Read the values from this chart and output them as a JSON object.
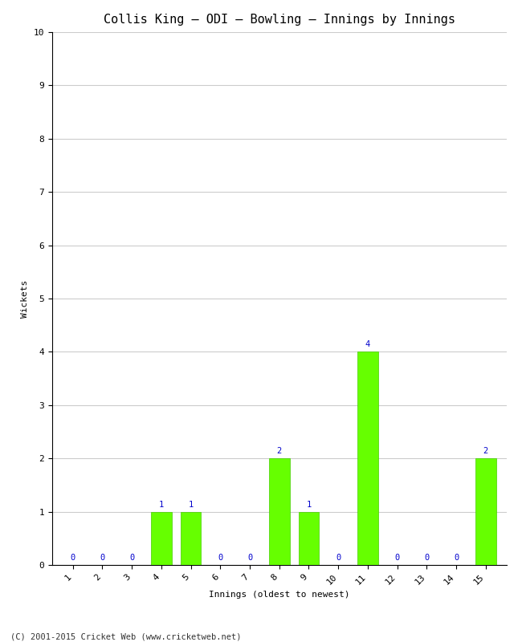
{
  "title": "Collis King – ODI – Bowling – Innings by Innings",
  "xlabel": "Innings (oldest to newest)",
  "ylabel": "Wickets",
  "categories": [
    1,
    2,
    3,
    4,
    5,
    6,
    7,
    8,
    9,
    10,
    11,
    12,
    13,
    14,
    15
  ],
  "values": [
    0,
    0,
    0,
    1,
    1,
    0,
    0,
    2,
    1,
    0,
    4,
    0,
    0,
    0,
    2
  ],
  "bar_color": "#66ff00",
  "bar_edge_color": "#44cc00",
  "label_color": "#0000cc",
  "title_color": "#000000",
  "background_color": "#ffffff",
  "ylim": [
    0,
    10
  ],
  "yticks": [
    0,
    1,
    2,
    3,
    4,
    5,
    6,
    7,
    8,
    9,
    10
  ],
  "grid_color": "#cccccc",
  "footer": "(C) 2001-2015 Cricket Web (www.cricketweb.net)",
  "title_fontsize": 11,
  "axis_label_fontsize": 8,
  "tick_fontsize": 8,
  "value_label_fontsize": 7.5,
  "footer_fontsize": 7.5
}
